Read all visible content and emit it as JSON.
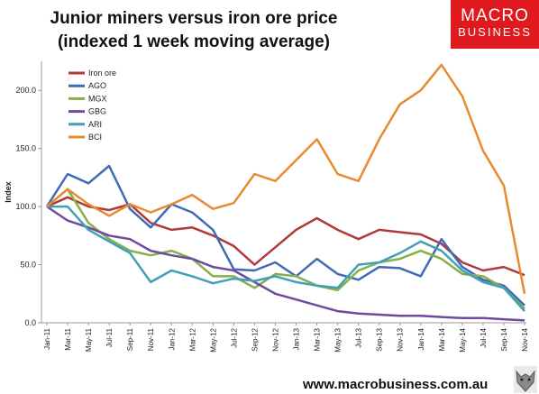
{
  "title_line1": "Junior miners versus iron ore price",
  "title_line2": "(indexed 1 week moving average)",
  "logo": {
    "line1": "MACRO",
    "line2": "BUSINESS"
  },
  "footer_url": "www.macrobusiness.com.au",
  "colors": {
    "logo_bg": "#e0191f",
    "axis": "#999999",
    "text": "#111111"
  },
  "chart_data": {
    "type": "line",
    "title": "Junior miners versus iron ore price (indexed 1 week moving average)",
    "ylabel": "Index",
    "xlabel": "",
    "ylim": [
      0,
      225
    ],
    "y_ticks": [
      "0.0",
      "50.0",
      "100.0",
      "150.0",
      "200.0"
    ],
    "y_tick_values": [
      0,
      50,
      100,
      150,
      200
    ],
    "grid": false,
    "legend_position": "top-left",
    "x": [
      "Jan-11",
      "Mar-11",
      "May-11",
      "Jul-11",
      "Sep-11",
      "Nov-11",
      "Jan-12",
      "Mar-12",
      "May-12",
      "Jul-12",
      "Sep-12",
      "Nov-12",
      "Jan-13",
      "Mar-13",
      "May-13",
      "Jul-13",
      "Sep-13",
      "Nov-13",
      "Jan-14",
      "Mar-14",
      "May-14",
      "Jul-14",
      "Sep-14",
      "Nov-14"
    ],
    "series": [
      {
        "name": "Iron ore",
        "color": "#b03a3a",
        "values": [
          100,
          108,
          100,
          97,
          102,
          86,
          80,
          82,
          75,
          66,
          50,
          65,
          80,
          90,
          80,
          72,
          80,
          78,
          76,
          68,
          52,
          45,
          48,
          41
        ]
      },
      {
        "name": "AGO",
        "color": "#3f6bb5",
        "values": [
          100,
          128,
          120,
          135,
          98,
          82,
          102,
          95,
          80,
          46,
          45,
          52,
          40,
          55,
          42,
          37,
          48,
          47,
          40,
          72,
          48,
          37,
          32,
          15
        ]
      },
      {
        "name": "MGX",
        "color": "#85b04a",
        "values": [
          100,
          115,
          86,
          72,
          62,
          58,
          62,
          55,
          40,
          40,
          30,
          42,
          40,
          32,
          28,
          45,
          52,
          55,
          62,
          55,
          42,
          40,
          30,
          12
        ]
      },
      {
        "name": "GBG",
        "color": "#6f4c9b",
        "values": [
          100,
          88,
          82,
          75,
          72,
          62,
          58,
          55,
          48,
          45,
          35,
          25,
          20,
          15,
          10,
          8,
          7,
          6,
          6,
          5,
          4,
          4,
          3,
          2
        ]
      },
      {
        "name": "ARI",
        "color": "#3fa0b8",
        "values": [
          100,
          100,
          80,
          70,
          60,
          35,
          45,
          40,
          34,
          38,
          36,
          40,
          35,
          32,
          30,
          50,
          52,
          60,
          70,
          62,
          45,
          35,
          30,
          10
        ]
      },
      {
        "name": "BCI",
        "color": "#e88b30",
        "values": [
          100,
          115,
          102,
          92,
          102,
          95,
          102,
          110,
          98,
          103,
          128,
          122,
          140,
          158,
          128,
          122,
          158,
          188,
          200,
          222,
          195,
          148,
          118,
          25
        ]
      }
    ]
  }
}
